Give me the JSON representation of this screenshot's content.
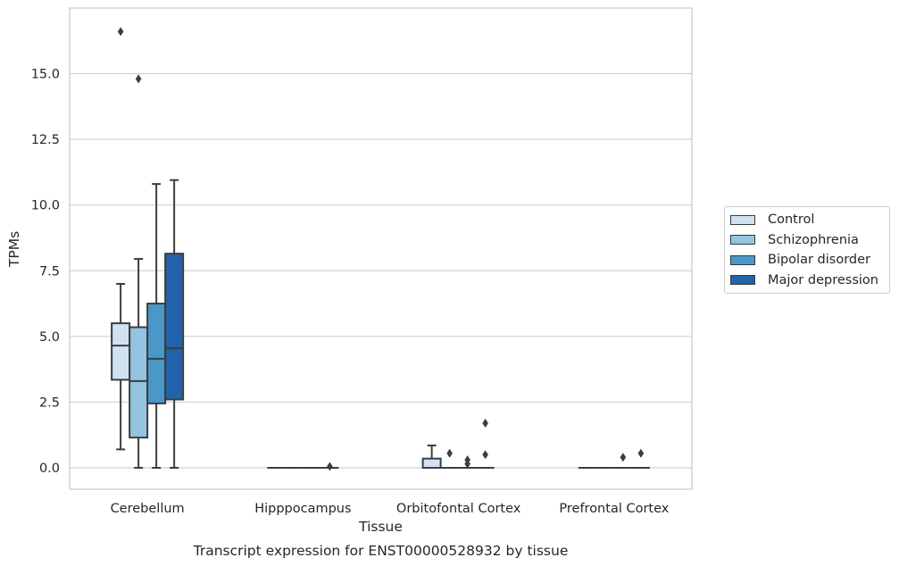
{
  "chart_data": {
    "type": "box",
    "title": "",
    "caption": "Transcript expression for ENST00000528932 by tissue",
    "xlabel": "Tissue",
    "ylabel": "TPMs",
    "ylim": [
      -0.8,
      17.5
    ],
    "yticks": [
      0.0,
      2.5,
      5.0,
      7.5,
      10.0,
      12.5,
      15.0
    ],
    "ytick_labels": [
      "0.0",
      "2.5",
      "5.0",
      "7.5",
      "10.0",
      "12.5",
      "15.0"
    ],
    "grid": "horizontal",
    "legend_position": "right",
    "categories": [
      "Cerebellum",
      "Hipppocampus",
      "Orbitofontal Cortex",
      "Prefrontal Cortex"
    ],
    "series": [
      {
        "name": "Control",
        "color": "#d0e1f2",
        "boxes": [
          {
            "q1": 3.35,
            "median": 4.65,
            "q3": 5.5,
            "whisker_low": 0.7,
            "whisker_high": 7.0,
            "outliers": [
              16.6
            ]
          },
          {
            "q1": 0.0,
            "median": 0.0,
            "q3": 0.0,
            "whisker_low": 0.0,
            "whisker_high": 0.0,
            "outliers": []
          },
          {
            "q1": 0.0,
            "median": 0.0,
            "q3": 0.35,
            "whisker_low": 0.0,
            "whisker_high": 0.85,
            "outliers": []
          },
          {
            "q1": 0.0,
            "median": 0.0,
            "q3": 0.0,
            "whisker_low": 0.0,
            "whisker_high": 0.0,
            "outliers": []
          }
        ]
      },
      {
        "name": "Schizophrenia",
        "color": "#94c4df",
        "boxes": [
          {
            "q1": 1.15,
            "median": 3.3,
            "q3": 5.35,
            "whisker_low": 0.0,
            "whisker_high": 7.95,
            "outliers": [
              14.8
            ]
          },
          {
            "q1": 0.0,
            "median": 0.0,
            "q3": 0.0,
            "whisker_low": 0.0,
            "whisker_high": 0.0,
            "outliers": []
          },
          {
            "q1": 0.0,
            "median": 0.0,
            "q3": 0.0,
            "whisker_low": 0.0,
            "whisker_high": 0.0,
            "outliers": [
              0.55
            ]
          },
          {
            "q1": 0.0,
            "median": 0.0,
            "q3": 0.0,
            "whisker_low": 0.0,
            "whisker_high": 0.0,
            "outliers": []
          }
        ]
      },
      {
        "name": "Bipolar disorder",
        "color": "#4a98c9",
        "boxes": [
          {
            "q1": 2.45,
            "median": 4.15,
            "q3": 6.25,
            "whisker_low": 0.0,
            "whisker_high": 10.8,
            "outliers": []
          },
          {
            "q1": 0.0,
            "median": 0.0,
            "q3": 0.0,
            "whisker_low": 0.0,
            "whisker_high": 0.0,
            "outliers": []
          },
          {
            "q1": 0.0,
            "median": 0.0,
            "q3": 0.0,
            "whisker_low": 0.0,
            "whisker_high": 0.0,
            "outliers": [
              0.15,
              0.3
            ]
          },
          {
            "q1": 0.0,
            "median": 0.0,
            "q3": 0.0,
            "whisker_low": 0.0,
            "whisker_high": 0.0,
            "outliers": [
              0.4
            ]
          }
        ]
      },
      {
        "name": "Major depression",
        "color": "#2163aa",
        "boxes": [
          {
            "q1": 2.6,
            "median": 4.55,
            "q3": 8.15,
            "whisker_low": 0.0,
            "whisker_high": 10.95,
            "outliers": []
          },
          {
            "q1": 0.0,
            "median": 0.0,
            "q3": 0.0,
            "whisker_low": 0.0,
            "whisker_high": 0.0,
            "outliers": [
              0.05
            ]
          },
          {
            "q1": 0.0,
            "median": 0.0,
            "q3": 0.0,
            "whisker_low": 0.0,
            "whisker_high": 0.0,
            "outliers": [
              0.5,
              1.7
            ]
          },
          {
            "q1": 0.0,
            "median": 0.0,
            "q3": 0.0,
            "whisker_low": 0.0,
            "whisker_high": 0.0,
            "outliers": [
              0.55
            ]
          }
        ]
      }
    ]
  }
}
